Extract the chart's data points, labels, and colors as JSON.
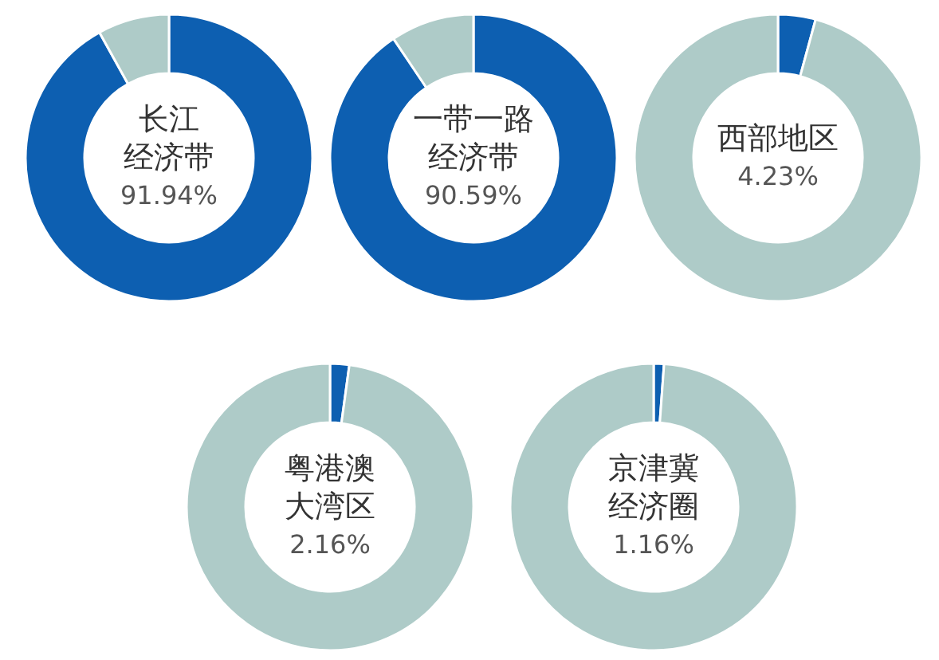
{
  "chart_data": [
    {
      "type": "donut",
      "title": "长江经济带",
      "categories": [
        null,
        null
      ],
      "values": [
        91.94,
        8.06
      ],
      "colors": [
        "#0d5fb1",
        "#aecbc8"
      ],
      "annotations": [
        "91.94%"
      ]
    },
    {
      "type": "donut",
      "title": "一带一路经济带",
      "categories": [
        null,
        null
      ],
      "values": [
        90.59,
        9.41
      ],
      "colors": [
        "#0d5fb1",
        "#aecbc8"
      ],
      "annotations": [
        "90.59%"
      ]
    },
    {
      "type": "donut",
      "title": "西部地区",
      "categories": [
        null,
        null
      ],
      "values": [
        4.23,
        95.77
      ],
      "colors": [
        "#0d5fb1",
        "#aecbc8"
      ],
      "annotations": [
        "4.23%"
      ]
    },
    {
      "type": "donut",
      "title": "粤港澳大湾区",
      "categories": [
        null,
        null
      ],
      "values": [
        2.16,
        97.84
      ],
      "colors": [
        "#0d5fb1",
        "#aecbc8"
      ],
      "annotations": [
        "2.16%"
      ]
    },
    {
      "type": "donut",
      "title": "京津冀经济圈",
      "categories": [
        null,
        null
      ],
      "values": [
        1.16,
        98.84
      ],
      "colors": [
        "#0d5fb1",
        "#aecbc8"
      ],
      "annotations": [
        "1.16%"
      ]
    }
  ]
}
